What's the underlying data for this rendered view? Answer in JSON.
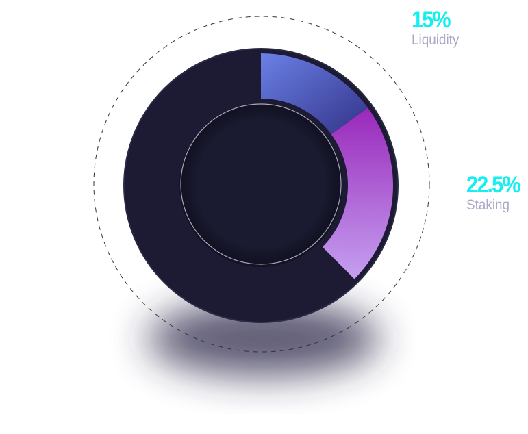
{
  "chart_data": {
    "type": "pie",
    "variant": "donut",
    "slices": [
      {
        "name": "Liquidity",
        "value": 15,
        "label": "15%",
        "gradient": [
          "#6a80e6",
          "#333388"
        ]
      },
      {
        "name": "Staking",
        "value": 22.5,
        "label": "22.5%",
        "gradient": [
          "#9a28bb",
          "#c4a0f0"
        ]
      },
      {
        "name": "",
        "value": 62.5,
        "label": "",
        "color": "#1c1b33"
      }
    ],
    "label_color": "#14f0f2",
    "name_color": "#a9a8c6",
    "legend": "right, beside slices"
  }
}
